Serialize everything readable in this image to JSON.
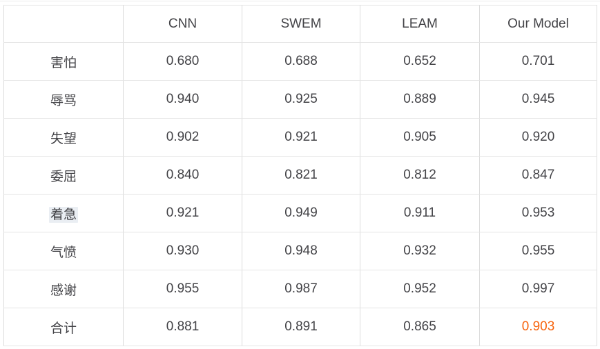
{
  "table": {
    "columns": [
      "",
      "CNN",
      "SWEM",
      "LEAM",
      "Our Model"
    ],
    "rows": [
      {
        "label": "害怕",
        "values": [
          "0.680",
          "0.688",
          "0.652",
          "0.701"
        ]
      },
      {
        "label": "辱骂",
        "values": [
          "0.940",
          "0.925",
          "0.889",
          "0.945"
        ]
      },
      {
        "label": "失望",
        "values": [
          "0.902",
          "0.921",
          "0.905",
          "0.920"
        ]
      },
      {
        "label": "委屈",
        "values": [
          "0.840",
          "0.821",
          "0.812",
          "0.847"
        ]
      },
      {
        "label": "着急",
        "label_highlighted": true,
        "values": [
          "0.921",
          "0.949",
          "0.911",
          "0.953"
        ]
      },
      {
        "label": "气愤",
        "values": [
          "0.930",
          "0.948",
          "0.932",
          "0.955"
        ]
      },
      {
        "label": "感谢",
        "values": [
          "0.955",
          "0.987",
          "0.952",
          "0.997"
        ]
      },
      {
        "label": "合计",
        "accent_value_index": 3,
        "values": [
          "0.881",
          "0.891",
          "0.865",
          "0.903"
        ]
      }
    ],
    "colors": {
      "text": "#434347",
      "border_vertical": "#dcdcdc",
      "border_horizontal": "#e4e4e4",
      "accent_orange": "#f7630c",
      "label_highlight_bg": "#eaeef3"
    }
  },
  "chart_data": {
    "type": "table",
    "title": "",
    "categories": [
      "害怕",
      "辱骂",
      "失望",
      "委屈",
      "着急",
      "气愤",
      "感谢",
      "合计"
    ],
    "series": [
      {
        "name": "CNN",
        "values": [
          0.68,
          0.94,
          0.902,
          0.84,
          0.921,
          0.93,
          0.955,
          0.881
        ]
      },
      {
        "name": "SWEM",
        "values": [
          0.688,
          0.925,
          0.921,
          0.821,
          0.949,
          0.948,
          0.987,
          0.891
        ]
      },
      {
        "name": "LEAM",
        "values": [
          0.652,
          0.889,
          0.905,
          0.812,
          0.911,
          0.932,
          0.952,
          0.865
        ]
      },
      {
        "name": "Our Model",
        "values": [
          0.701,
          0.945,
          0.92,
          0.847,
          0.953,
          0.955,
          0.997,
          0.903
        ]
      }
    ],
    "annotations": [
      {
        "row": "合计",
        "column": "Our Model",
        "value": 0.903,
        "style": "orange-highlight"
      }
    ],
    "legend_position": "none",
    "grid": true
  }
}
